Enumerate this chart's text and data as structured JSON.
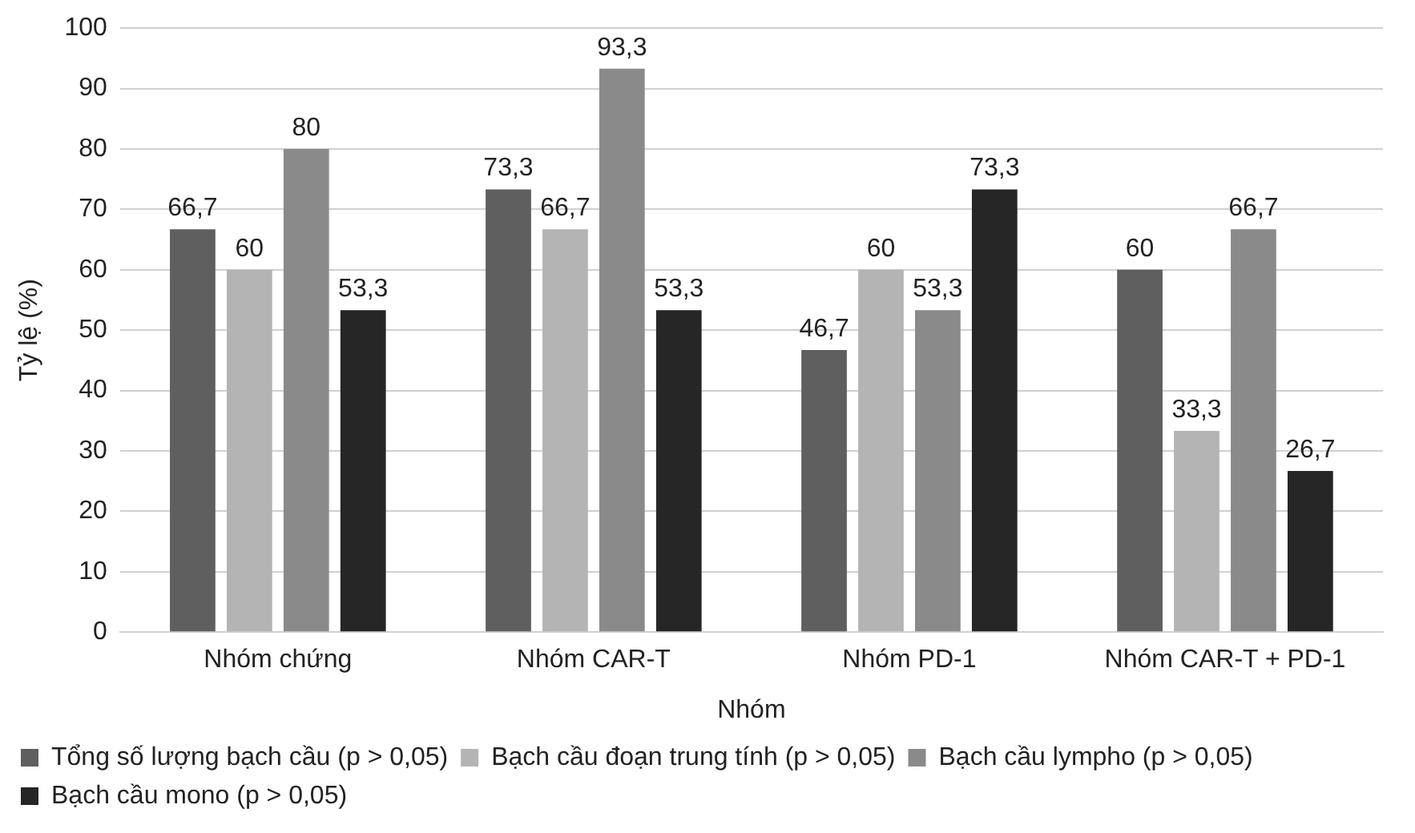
{
  "chart_data": {
    "type": "bar",
    "xlabel": "Nhóm",
    "ylabel": "Tỷ lệ (%)",
    "categories": [
      "Nhóm chứng",
      "Nhóm CAR-T",
      "Nhóm PD-1",
      "Nhóm CAR-T + PD-1"
    ],
    "series": [
      {
        "name": "Tổng số lượng bạch cầu (p > 0,05)",
        "color": "#5f5f5f",
        "values": [
          66.7,
          73.3,
          46.7,
          60
        ],
        "value_labels": [
          "66,7",
          "73,3",
          "46,7",
          "60"
        ]
      },
      {
        "name": "Bạch cầu đoạn trung tính (p > 0,05)",
        "color": "#b4b4b4",
        "values": [
          60,
          66.7,
          60,
          33.3
        ],
        "value_labels": [
          "60",
          "66,7",
          "60",
          "33,3"
        ]
      },
      {
        "name": "Bạch cầu lympho (p > 0,05)",
        "color": "#8a8a8a",
        "values": [
          80,
          93.3,
          53.3,
          66.7
        ],
        "value_labels": [
          "80",
          "93,3",
          "53,3",
          "66,7"
        ]
      },
      {
        "name": "Bạch cầu mono (p > 0,05)",
        "color": "#262626",
        "values": [
          53.3,
          53.3,
          73.3,
          26.7
        ],
        "value_labels": [
          "53,3",
          "53,3",
          "73,3",
          "26,7"
        ]
      }
    ],
    "ylim": [
      0,
      100
    ],
    "yticks": [
      0,
      10,
      20,
      30,
      40,
      50,
      60,
      70,
      80,
      90,
      100
    ],
    "grid": "y",
    "legend": "bottom"
  }
}
